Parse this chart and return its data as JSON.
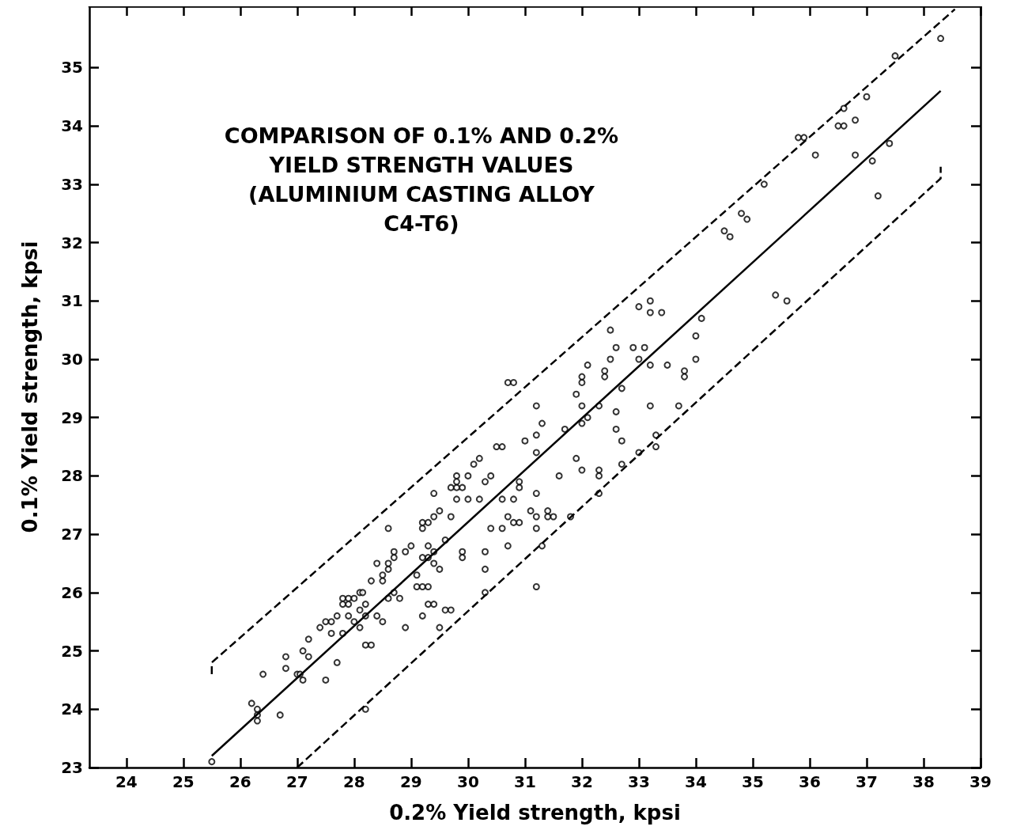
{
  "chart_data": {
    "type": "scatter",
    "title": "COMPARISON OF 0.1% AND 0.2%\nYIELD STRENGTH VALUES\n(ALUMINIUM CASTING ALLOY\nC4-T6)",
    "xlabel": "0.2% Yield strength, kpsi",
    "ylabel": "0.1% Yield strength, kpsi",
    "xlim": [
      23.35,
      39
    ],
    "xticks": [
      24,
      25,
      26,
      27,
      28,
      29,
      30,
      31,
      32,
      33,
      34,
      35,
      36,
      37,
      38,
      39
    ],
    "ylim": [
      23,
      36.05
    ],
    "yticks": [
      23,
      24,
      25,
      26,
      27,
      28,
      29,
      30,
      31,
      32,
      33,
      34,
      35
    ],
    "grid": false,
    "marker": "circle",
    "series": [
      {
        "color": "#000000",
        "x": [
          25.5,
          26.2,
          26.3,
          26.3,
          26.3,
          26.4,
          26.7,
          26.8,
          26.8,
          27.0,
          27.05,
          27.1,
          27.1,
          27.2,
          27.2,
          27.4,
          27.5,
          27.5,
          27.6,
          27.6,
          27.7,
          27.7,
          27.8,
          27.8,
          27.8,
          27.9,
          27.9,
          27.9,
          28.0,
          28.0,
          28.1,
          28.1,
          28.1,
          28.15,
          28.2,
          28.2,
          28.2,
          28.3,
          28.2,
          28.3,
          28.4,
          28.4,
          28.5,
          28.5,
          28.5,
          28.6,
          28.6,
          28.6,
          28.6,
          28.7,
          28.7,
          28.7,
          28.8,
          28.9,
          28.9,
          29.0,
          29.1,
          29.1,
          29.2,
          29.2,
          29.2,
          29.2,
          29.2,
          29.3,
          29.3,
          29.3,
          29.3,
          29.3,
          29.4,
          29.4,
          29.4,
          29.4,
          29.4,
          29.5,
          29.5,
          29.5,
          29.6,
          29.6,
          29.7,
          29.7,
          29.7,
          29.8,
          29.8,
          29.8,
          29.8,
          29.9,
          29.9,
          29.9,
          30.0,
          30.0,
          30.1,
          30.2,
          30.2,
          30.3,
          30.3,
          30.3,
          30.3,
          30.4,
          30.4,
          30.5,
          30.6,
          30.6,
          30.6,
          30.7,
          30.8,
          30.7,
          30.7,
          30.8,
          30.8,
          30.9,
          30.9,
          30.9,
          31.0,
          31.1,
          31.2,
          31.2,
          31.2,
          31.2,
          31.2,
          31.2,
          31.2,
          31.3,
          31.3,
          31.4,
          31.4,
          31.5,
          31.6,
          31.7,
          31.8,
          31.9,
          31.9,
          32.0,
          32.0,
          32.0,
          32.0,
          32.0,
          32.1,
          32.1,
          32.3,
          32.3,
          32.3,
          32.3,
          32.4,
          32.4,
          32.5,
          32.5,
          32.6,
          32.6,
          32.6,
          32.7,
          32.7,
          32.7,
          32.9,
          33.0,
          33.0,
          33.0,
          33.1,
          33.2,
          33.2,
          33.2,
          33.2,
          33.3,
          33.3,
          33.4,
          33.5,
          33.7,
          33.8,
          33.8,
          34.0,
          34.0,
          34.1,
          34.5,
          34.6,
          34.8,
          34.9,
          35.2,
          35.4,
          35.6,
          35.8,
          35.9,
          36.1,
          36.5,
          36.6,
          36.6,
          36.8,
          36.8,
          37.0,
          37.1,
          37.2,
          37.4,
          37.5,
          38.3
        ],
        "values": [
          23.1,
          24.1,
          24.0,
          23.9,
          23.8,
          24.6,
          23.9,
          24.9,
          24.7,
          24.6,
          24.6,
          25.0,
          24.5,
          24.9,
          25.2,
          25.4,
          24.5,
          25.5,
          25.3,
          25.5,
          25.6,
          24.8,
          25.9,
          25.8,
          25.3,
          25.9,
          25.6,
          25.8,
          25.9,
          25.5,
          25.7,
          26.0,
          25.4,
          26.0,
          25.6,
          25.8,
          25.1,
          25.1,
          24.0,
          26.2,
          26.5,
          25.6,
          25.5,
          26.2,
          26.3,
          26.4,
          26.5,
          27.1,
          25.9,
          26.6,
          26.7,
          26.0,
          25.9,
          26.7,
          25.4,
          26.8,
          26.3,
          26.1,
          26.6,
          27.1,
          27.2,
          26.1,
          25.6,
          27.2,
          26.8,
          26.6,
          26.1,
          25.8,
          26.7,
          26.5,
          27.7,
          27.3,
          25.8,
          27.4,
          26.4,
          25.4,
          26.9,
          25.7,
          25.7,
          27.3,
          27.8,
          27.8,
          28.0,
          27.9,
          27.6,
          27.8,
          26.7,
          26.6,
          27.6,
          28.0,
          28.2,
          28.3,
          27.6,
          27.9,
          26.7,
          26.4,
          26.0,
          28.0,
          27.1,
          28.5,
          28.5,
          27.1,
          27.6,
          29.6,
          29.6,
          27.3,
          26.8,
          27.6,
          27.2,
          27.9,
          27.8,
          27.2,
          28.6,
          27.4,
          29.2,
          28.7,
          28.4,
          27.7,
          27.3,
          27.1,
          26.1,
          28.9,
          26.8,
          27.3,
          27.4,
          27.3,
          28.0,
          28.8,
          27.3,
          29.4,
          28.3,
          29.7,
          29.6,
          29.2,
          28.9,
          28.1,
          29.9,
          29.0,
          29.2,
          28.1,
          28.0,
          27.7,
          29.8,
          29.7,
          30.5,
          30.0,
          30.2,
          29.1,
          28.8,
          29.5,
          28.6,
          28.2,
          30.2,
          30.9,
          30.0,
          28.4,
          30.2,
          31.0,
          30.8,
          29.9,
          29.2,
          28.7,
          28.5,
          30.8,
          29.9,
          29.2,
          29.8,
          29.7,
          30.4,
          30.0,
          30.7,
          32.2,
          32.1,
          32.5,
          32.4,
          33.0,
          31.1,
          31.0,
          33.8,
          33.8,
          33.5,
          34.0,
          34.3,
          34.0,
          34.1,
          33.5,
          34.5,
          33.4,
          32.8,
          33.7,
          35.2,
          35.5
        ]
      },
      {
        "type": "line",
        "color": "#000000",
        "line_style": "solid",
        "marker": "none",
        "x": [
          25.5,
          38.3
        ],
        "values": [
          23.2,
          34.6
        ]
      },
      {
        "type": "line",
        "color": "#000000",
        "line_style": "dashed",
        "marker": "none",
        "x": [
          25.5,
          25.5,
          38.55
        ],
        "values": [
          24.6,
          24.8,
          36.0
        ]
      },
      {
        "type": "line",
        "color": "#000000",
        "line_style": "dashed",
        "marker": "none",
        "x": [
          27.0,
          38.3,
          38.3
        ],
        "values": [
          23.0,
          33.1,
          33.3
        ]
      }
    ]
  }
}
